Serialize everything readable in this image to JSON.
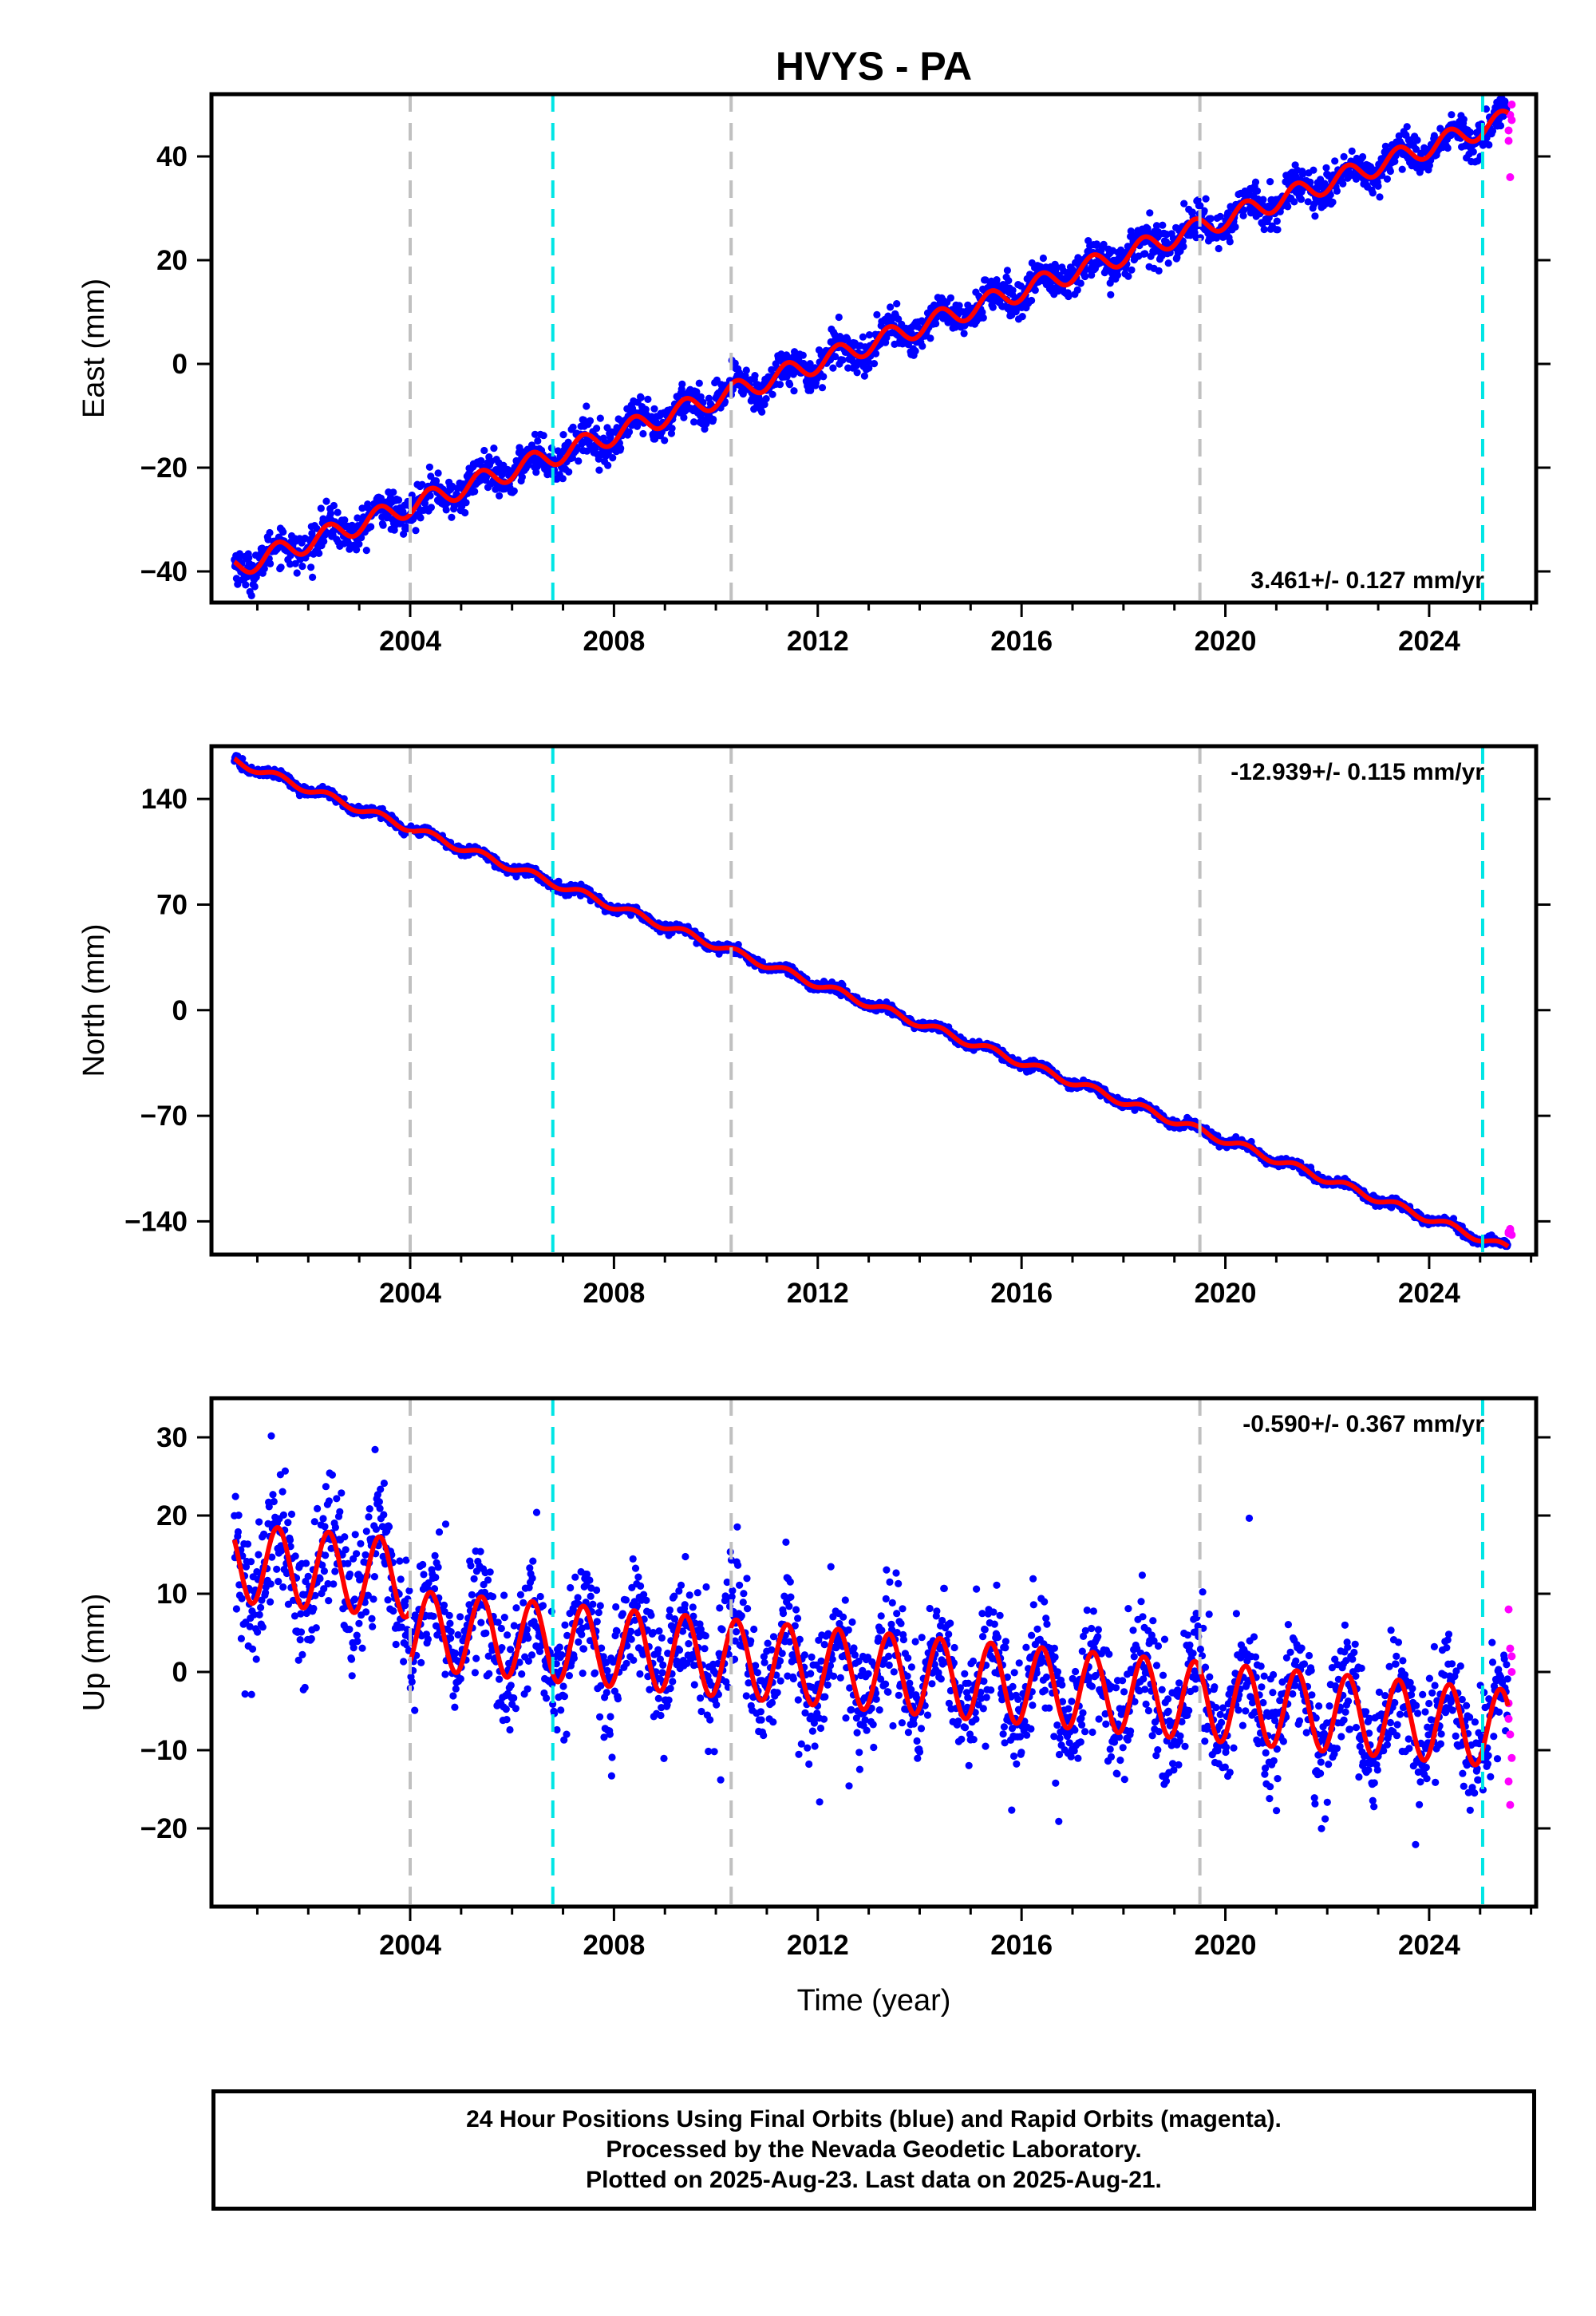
{
  "title": "HVYS - PA",
  "footer": {
    "line1": "24 Hour Positions Using Final Orbits (blue) and Rapid Orbits (magenta).",
    "line2": "Processed by the Nevada Geodetic Laboratory.",
    "line3": "Plotted on 2025-Aug-23. Last data on 2025-Aug-21."
  },
  "colors": {
    "final_orbits": "#0000ff",
    "rapid_orbits": "#ff00ff",
    "model_fit": "#ff0000",
    "equipment_change": "#c0c0c0",
    "earthquake_offset": "#00e5e5"
  },
  "chart_data": [
    {
      "type": "scatter",
      "panel": "east",
      "ylabel": "East (mm)",
      "xlabel": "",
      "xlim": [
        2000.1,
        2026.1
      ],
      "ylim": [
        -46,
        52
      ],
      "xticks": [
        2004,
        2008,
        2012,
        2016,
        2020,
        2024
      ],
      "yticks": [
        -40,
        -20,
        0,
        20,
        40
      ],
      "rate_label": "3.461+/- 0.127 mm/yr",
      "rate_position": "bottom-right",
      "start_value": -39.5,
      "trend_mm_per_yr": 3.461,
      "seasonal_amplitude_mm": 2,
      "scatter_mm": 1.8,
      "rapid_orbit_values": [
        43,
        48,
        50,
        45,
        36,
        47
      ],
      "reference_lines_gray": [
        2004.0,
        2010.3,
        2019.5
      ],
      "reference_lines_cyan": [
        2006.8,
        2025.05
      ]
    },
    {
      "type": "scatter",
      "panel": "north",
      "ylabel": "North (mm)",
      "xlabel": "",
      "xlim": [
        2000.1,
        2026.1
      ],
      "ylim": [
        -162,
        175
      ],
      "xticks": [
        2004,
        2008,
        2012,
        2016,
        2020,
        2024
      ],
      "yticks": [
        -140,
        -70,
        0,
        70,
        140
      ],
      "rate_label": "-12.939+/- 0.115 mm/yr",
      "rate_position": "top-right",
      "start_value": 166,
      "trend_mm_per_yr": -12.939,
      "seasonal_amplitude_mm": 2.5,
      "scatter_mm": 1.5,
      "rapid_orbit_values": [
        -148,
        -146,
        -149,
        -147,
        -145
      ],
      "reference_lines_gray": [
        2004.0,
        2010.3,
        2019.5
      ],
      "reference_lines_cyan": [
        2006.8,
        2025.05
      ]
    },
    {
      "type": "scatter",
      "panel": "up",
      "ylabel": "Up (mm)",
      "xlabel": "Time (year)",
      "xlim": [
        2000.1,
        2026.1
      ],
      "ylim": [
        -30,
        35
      ],
      "xticks": [
        2004,
        2008,
        2012,
        2016,
        2020,
        2024
      ],
      "yticks": [
        -20,
        -10,
        0,
        10,
        20,
        30
      ],
      "rate_label": "-0.590+/- 0.367 mm/yr",
      "rate_position": "top-right",
      "start_value": 14,
      "trend_mm_per_yr": -0.59,
      "seasonal_amplitude_mm": 5,
      "scatter_mm": 3.8,
      "offset_at_2004_mm": -6.5,
      "rapid_orbit_values": [
        8,
        3,
        0,
        -4,
        -8,
        -11,
        -14,
        -17,
        2,
        -6
      ],
      "reference_lines_gray": [
        2004.0,
        2010.3,
        2019.5
      ],
      "reference_lines_cyan": [
        2006.8,
        2025.05
      ]
    }
  ]
}
